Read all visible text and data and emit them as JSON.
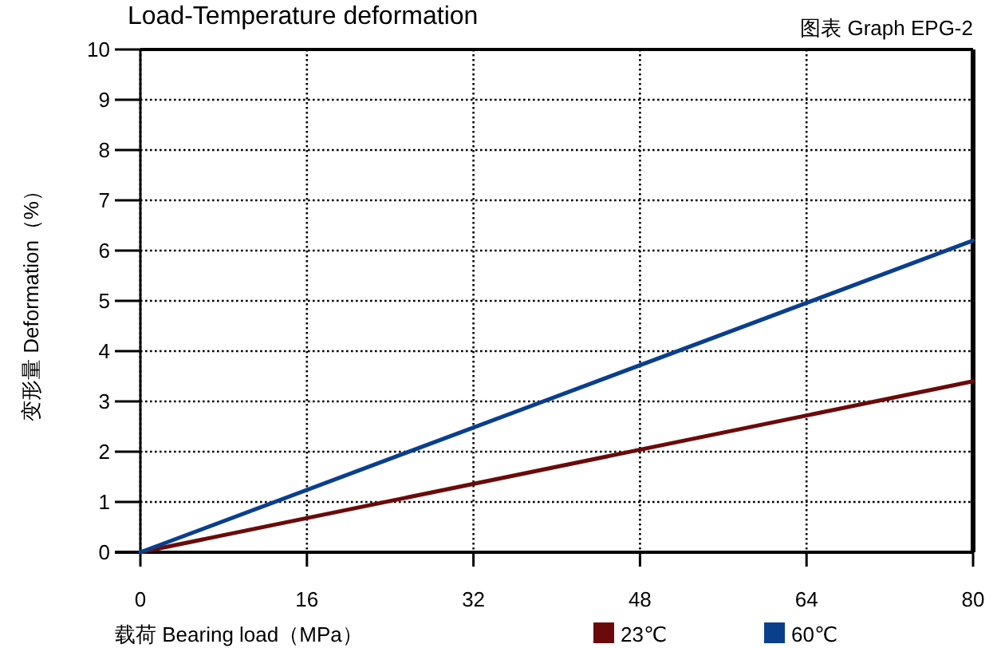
{
  "chart_data": {
    "type": "line",
    "title": "Load-Temperature deformation",
    "subtitle": "图表 Graph EPG-2",
    "xlabel": "载荷 Bearing load（MPa）",
    "ylabel": "变形量 Deformation（%）",
    "xlim": [
      0,
      80
    ],
    "xticks": [
      0,
      16,
      32,
      48,
      64,
      80
    ],
    "ylim": [
      0,
      10
    ],
    "yticks": [
      0,
      1,
      2,
      3,
      4,
      5,
      6,
      7,
      8,
      9,
      10
    ],
    "grid": true,
    "legend": "bottom",
    "marker": "none",
    "line_style": "solid",
    "x": [
      0,
      80
    ],
    "series": [
      {
        "name": "23℃",
        "color": "#6b0a0a",
        "values": [
          0,
          3.4
        ]
      },
      {
        "name": "60℃",
        "color": "#0a3f8c",
        "values": [
          0,
          6.2
        ]
      }
    ]
  }
}
